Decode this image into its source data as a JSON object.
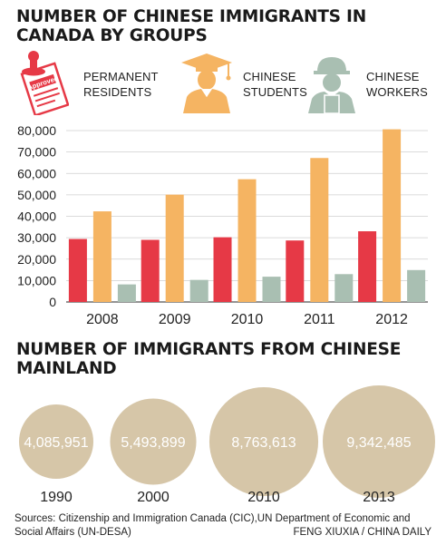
{
  "titles": {
    "main": "NUMBER OF CHINESE IMMIGRANTS IN CANADA BY GROUPS",
    "second": "NUMBER OF IMMIGRANTS FROM CHINESE MAINLAND"
  },
  "legend": [
    {
      "label": "PERMANENT RESIDENTS",
      "icon": "approved-stamp-icon",
      "color": "#e63946"
    },
    {
      "label": "CHINESE STUDENTS",
      "icon": "graduate-icon",
      "color": "#f5b462"
    },
    {
      "label": "CHINESE WORKERS",
      "icon": "worker-helmet-icon",
      "color": "#a9bfb2"
    }
  ],
  "stamp_text": "Approved",
  "chart_data": [
    {
      "type": "bar",
      "title": "NUMBER OF CHINESE IMMIGRANTS IN CANADA BY GROUPS",
      "categories": [
        "2008",
        "2009",
        "2010",
        "2011",
        "2012"
      ],
      "series": [
        {
          "name": "PERMANENT RESIDENTS",
          "color": "#e63946",
          "values": [
            29400,
            29000,
            30200,
            28700,
            33000
          ]
        },
        {
          "name": "CHINESE STUDENTS",
          "color": "#f5b462",
          "values": [
            42300,
            50100,
            57300,
            67200,
            80600
          ]
        },
        {
          "name": "CHINESE WORKERS",
          "color": "#a9bfb2",
          "values": [
            8200,
            10300,
            11800,
            13000,
            14900
          ]
        }
      ],
      "yticks": [
        "0",
        "10,000",
        "20,000",
        "30,000",
        "40,000",
        "50,000",
        "60,000",
        "70,000",
        "80,000"
      ],
      "ylim": [
        0,
        80000
      ],
      "grid": true,
      "legend_position": "top"
    },
    {
      "type": "bubble",
      "title": "NUMBER OF IMMIGRANTS FROM CHINESE MAINLAND",
      "categories": [
        "1990",
        "2000",
        "2010",
        "2013"
      ],
      "values": [
        4085951,
        5493899,
        8763613,
        9342485
      ],
      "labels": [
        "4,085,951",
        "5,493,899",
        "8,763,613",
        "9,342,485"
      ],
      "color": "#d6c6a8"
    }
  ],
  "footer": {
    "sources": "Sources: Citizenship and Immigration Canada (CIC),UN Department of Economic and Social Affairs (UN-DESA)",
    "credit": "FENG XIUXIA / CHINA DAILY"
  }
}
